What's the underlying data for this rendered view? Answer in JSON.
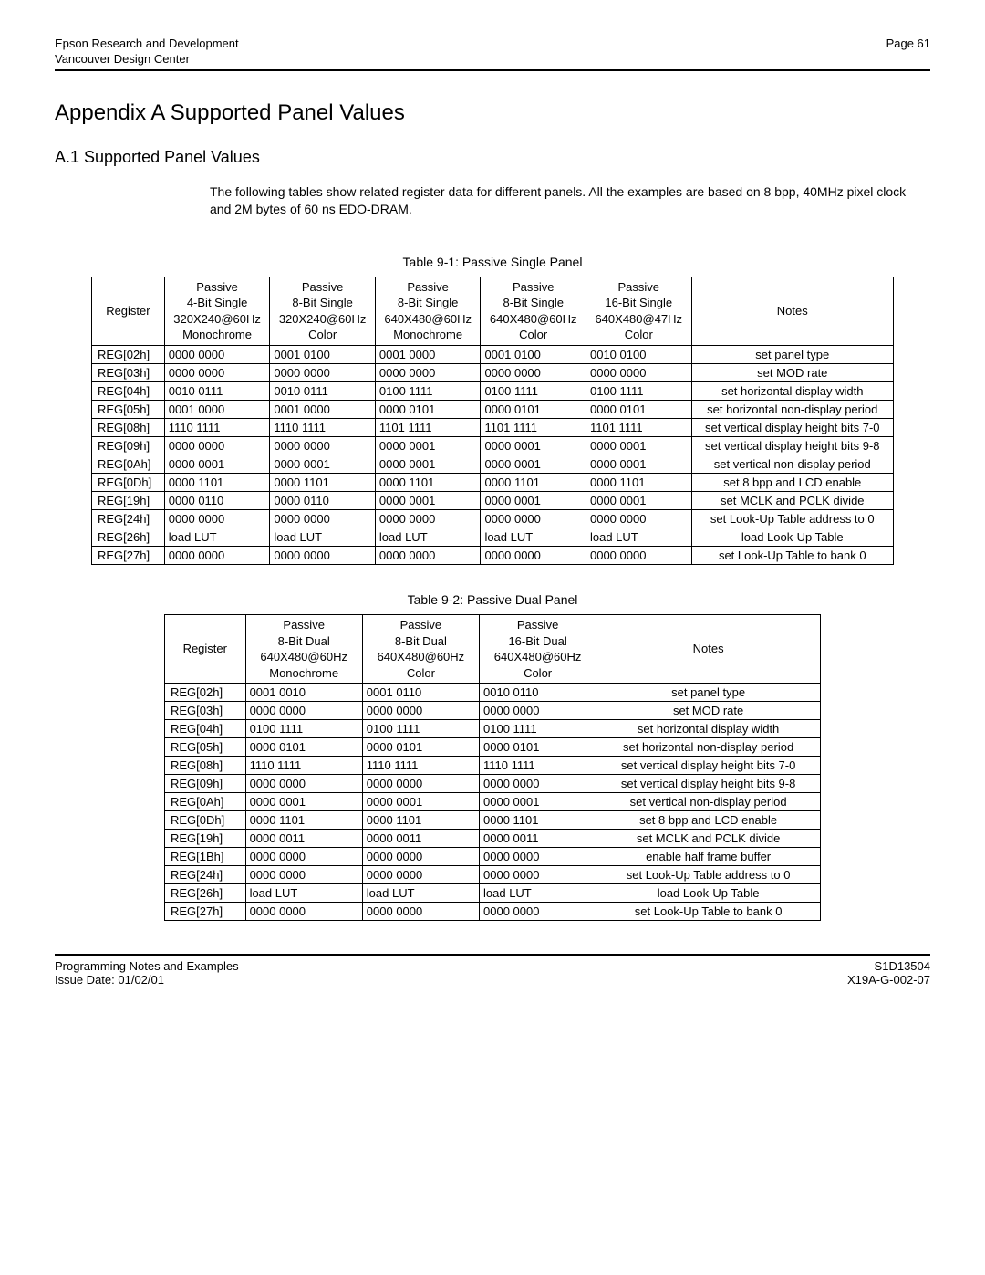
{
  "header": {
    "org": "Epson Research and Development",
    "sub": "Vancouver Design Center",
    "page": "Page 61"
  },
  "title": "Appendix A  Supported Panel Values",
  "section": "A.1  Supported Panel Values",
  "intro": "The following tables show related register data for different panels. All the examples are based on 8 bpp, 40MHz pixel clock and 2M bytes of 60 ns EDO-DRAM.",
  "table1": {
    "caption": "Table 9-1: Passive Single Panel",
    "headers": {
      "register": "Register",
      "c1": "Passive\n4-Bit Single\n320X240@60Hz\nMonochrome",
      "c2": "Passive\n8-Bit Single\n320X240@60Hz\nColor",
      "c3": "Passive\n8-Bit Single\n640X480@60Hz\nMonochrome",
      "c4": "Passive\n8-Bit Single\n640X480@60Hz\nColor",
      "c5": "Passive\n16-Bit Single\n640X480@47Hz\nColor",
      "notes": "Notes"
    },
    "rows": [
      {
        "reg": "REG[02h]",
        "v": [
          "0000 0000",
          "0001 0100",
          "0001 0000",
          "0001 0100",
          "0010 0100"
        ],
        "note": "set panel type"
      },
      {
        "reg": "REG[03h]",
        "v": [
          "0000 0000",
          "0000 0000",
          "0000 0000",
          "0000 0000",
          "0000 0000"
        ],
        "note": "set MOD rate"
      },
      {
        "reg": "REG[04h]",
        "v": [
          "0010 0111",
          "0010 0111",
          "0100 1111",
          "0100 1111",
          "0100 1111"
        ],
        "note": "set horizontal display width"
      },
      {
        "reg": "REG[05h]",
        "v": [
          "0001 0000",
          "0001 0000",
          "0000 0101",
          "0000 0101",
          "0000 0101"
        ],
        "note": "set horizontal non-display period"
      },
      {
        "reg": "REG[08h]",
        "v": [
          "1110 1111",
          "1110 1111",
          "1101 1111",
          "1101 1111",
          "1101 1111"
        ],
        "note": "set vertical display height bits 7-0"
      },
      {
        "reg": "REG[09h]",
        "v": [
          "0000 0000",
          "0000 0000",
          "0000 0001",
          "0000 0001",
          "0000 0001"
        ],
        "note": "set vertical display height bits 9-8"
      },
      {
        "reg": "REG[0Ah]",
        "v": [
          "0000 0001",
          "0000 0001",
          "0000 0001",
          "0000 0001",
          "0000 0001"
        ],
        "note": "set vertical non-display period"
      },
      {
        "reg": "REG[0Dh]",
        "v": [
          "0000 1101",
          "0000 1101",
          "0000 1101",
          "0000 1101",
          "0000 1101"
        ],
        "note": "set 8 bpp and LCD enable"
      },
      {
        "reg": "REG[19h]",
        "v": [
          "0000 0110",
          "0000 0110",
          "0000 0001",
          "0000 0001",
          "0000 0001"
        ],
        "note": "set MCLK and PCLK divide"
      },
      {
        "reg": "REG[24h]",
        "v": [
          "0000 0000",
          "0000 0000",
          "0000 0000",
          "0000 0000",
          "0000 0000"
        ],
        "note": "set Look-Up Table address to 0"
      },
      {
        "reg": "REG[26h]",
        "v": [
          "load LUT",
          "load LUT",
          "load LUT",
          "load LUT",
          "load LUT"
        ],
        "note": "load Look-Up Table"
      },
      {
        "reg": "REG[27h]",
        "v": [
          "0000 0000",
          "0000 0000",
          "0000 0000",
          "0000 0000",
          "0000 0000"
        ],
        "note": "set Look-Up Table to bank 0"
      }
    ]
  },
  "table2": {
    "caption": "Table 9-2: Passive Dual Panel",
    "headers": {
      "register": "Register",
      "c1": "Passive\n8-Bit Dual\n640X480@60Hz\nMonochrome",
      "c2": "Passive\n8-Bit Dual\n640X480@60Hz\nColor",
      "c3": "Passive\n16-Bit Dual\n640X480@60Hz\nColor",
      "notes": "Notes"
    },
    "rows": [
      {
        "reg": "REG[02h]",
        "v": [
          "0001 0010",
          "0001 0110",
          "0010 0110"
        ],
        "note": "set panel type"
      },
      {
        "reg": "REG[03h]",
        "v": [
          "0000 0000",
          "0000 0000",
          "0000 0000"
        ],
        "note": "set MOD rate"
      },
      {
        "reg": "REG[04h]",
        "v": [
          "0100 1111",
          "0100 1111",
          "0100 1111"
        ],
        "note": "set horizontal display width"
      },
      {
        "reg": "REG[05h]",
        "v": [
          "0000 0101",
          "0000 0101",
          "0000 0101"
        ],
        "note": "set horizontal non-display period"
      },
      {
        "reg": "REG[08h]",
        "v": [
          "1110 1111",
          "1110 1111",
          "1110 1111"
        ],
        "note": "set vertical display height bits 7-0"
      },
      {
        "reg": "REG[09h]",
        "v": [
          "0000 0000",
          "0000 0000",
          "0000 0000"
        ],
        "note": "set vertical display height bits 9-8"
      },
      {
        "reg": "REG[0Ah]",
        "v": [
          "0000 0001",
          "0000 0001",
          "0000 0001"
        ],
        "note": "set vertical non-display period"
      },
      {
        "reg": "REG[0Dh]",
        "v": [
          "0000 1101",
          "0000 1101",
          "0000 1101"
        ],
        "note": "set 8 bpp and LCD enable"
      },
      {
        "reg": "REG[19h]",
        "v": [
          "0000 0011",
          "0000 0011",
          "0000 0011"
        ],
        "note": "set MCLK and PCLK divide"
      },
      {
        "reg": "REG[1Bh]",
        "v": [
          "0000 0000",
          "0000 0000",
          "0000 0000"
        ],
        "note": "enable half frame buffer"
      },
      {
        "reg": "REG[24h]",
        "v": [
          "0000 0000",
          "0000 0000",
          "0000 0000"
        ],
        "note": "set Look-Up Table address to 0"
      },
      {
        "reg": "REG[26h]",
        "v": [
          "load LUT",
          "load LUT",
          "load LUT"
        ],
        "note": "load Look-Up Table"
      },
      {
        "reg": "REG[27h]",
        "v": [
          "0000 0000",
          "0000 0000",
          "0000 0000"
        ],
        "note": "set Look-Up Table to bank 0"
      }
    ]
  },
  "footer": {
    "left1": "Programming Notes and Examples",
    "left2": "Issue Date: 01/02/01",
    "right1": "S1D13504",
    "right2": "X19A-G-002-07"
  }
}
